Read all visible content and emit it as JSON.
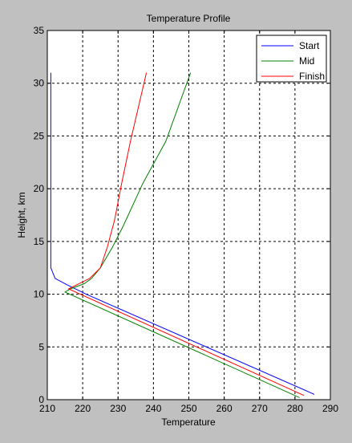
{
  "chart_data": {
    "type": "line",
    "title": "Temperature Profile",
    "xlabel": "Temperature",
    "ylabel": "Height, km",
    "xlim": [
      210,
      290
    ],
    "ylim": [
      0,
      35
    ],
    "xticks": [
      210,
      220,
      230,
      240,
      250,
      260,
      270,
      280,
      290
    ],
    "yticks": [
      0,
      5,
      10,
      15,
      20,
      25,
      30,
      35
    ],
    "grid": true,
    "legend_position": "top-right",
    "series": [
      {
        "name": "Start",
        "color": "#0000ff",
        "points": [
          [
            211.0,
            31.0
          ],
          [
            211.0,
            25.0
          ],
          [
            211.0,
            20.0
          ],
          [
            211.0,
            15.0
          ],
          [
            211.0,
            12.5
          ],
          [
            212.2,
            11.5
          ],
          [
            215.5,
            10.9
          ],
          [
            221.0,
            10.0
          ],
          [
            285.5,
            0.5
          ]
        ]
      },
      {
        "name": "Mid",
        "color": "#008000",
        "points": [
          [
            250.5,
            31.0
          ],
          [
            243.5,
            24.5
          ],
          [
            237.0,
            20.5
          ],
          [
            231.5,
            16.5
          ],
          [
            228.5,
            14.5
          ],
          [
            225.0,
            12.5
          ],
          [
            222.5,
            11.5
          ],
          [
            220.5,
            11.0
          ],
          [
            216.5,
            10.5
          ],
          [
            215.0,
            10.2
          ],
          [
            281.3,
            0.2
          ]
        ]
      },
      {
        "name": "Finish",
        "color": "#ff0000",
        "points": [
          [
            238.0,
            31.0
          ],
          [
            233.5,
            24.5
          ],
          [
            231.0,
            20.5
          ],
          [
            229.0,
            17.0
          ],
          [
            227.0,
            14.5
          ],
          [
            225.0,
            12.5
          ],
          [
            222.0,
            11.5
          ],
          [
            219.0,
            11.0
          ],
          [
            216.0,
            10.5
          ],
          [
            282.5,
            0.4
          ]
        ]
      }
    ]
  }
}
